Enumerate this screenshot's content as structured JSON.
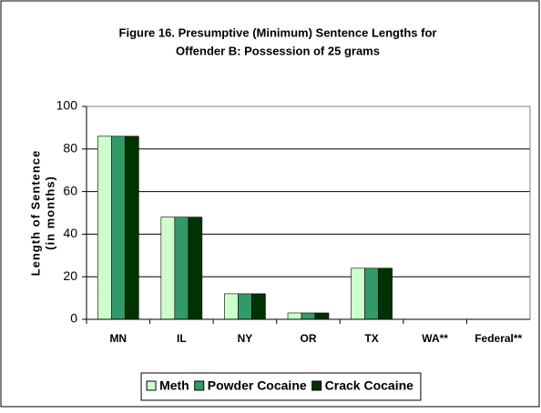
{
  "chart_data": {
    "type": "bar",
    "title": [
      "Figure 16.  Presumptive (Minimum) Sentence Lengths for",
      "Offender B: Possession of 25 grams"
    ],
    "y_label": [
      "Length of Sentence",
      "(in months)"
    ],
    "categories": [
      "MN",
      "IL",
      "NY",
      "OR",
      "TX",
      "WA**",
      "Federal**"
    ],
    "series": [
      {
        "name": "Meth",
        "color": "#ccffcc",
        "values": [
          86,
          48,
          12,
          3,
          24,
          0,
          0
        ]
      },
      {
        "name": "Powder Cocaine",
        "color": "#339966",
        "values": [
          86,
          48,
          12,
          3,
          24,
          0,
          0
        ]
      },
      {
        "name": "Crack Cocaine",
        "color": "#003300",
        "values": [
          86,
          48,
          12,
          3,
          24,
          0,
          0
        ]
      }
    ],
    "ylim": [
      0,
      100
    ],
    "yticks": [
      0,
      20,
      40,
      60,
      80,
      100
    ],
    "grid": true,
    "legend": "bottom"
  }
}
